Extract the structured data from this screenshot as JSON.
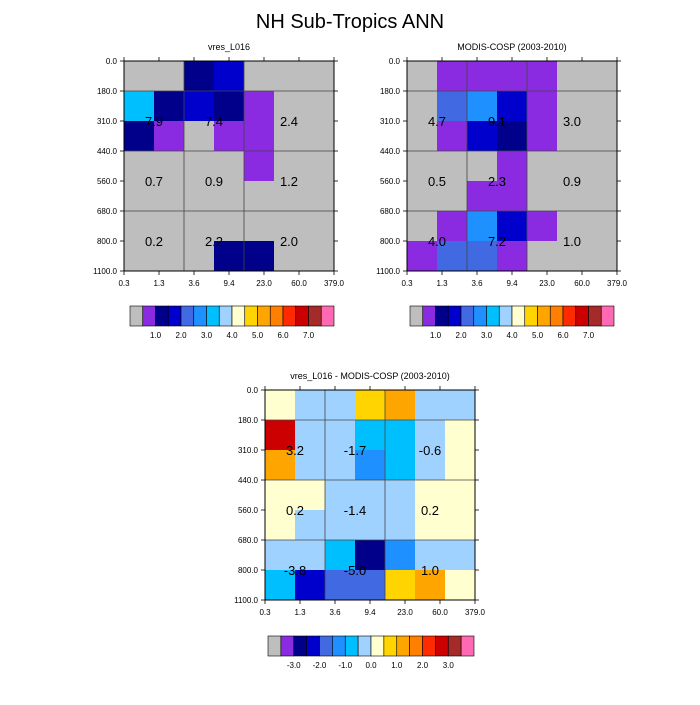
{
  "figure_title": "NH Sub-Tropics ANN",
  "colors": {
    "frame": "#000000",
    "section_line": "#444444",
    "abs_palette": [
      "#bebebe",
      "#8a2be2",
      "#00008b",
      "#0000cd",
      "#4169e1",
      "#1e90ff",
      "#00bfff",
      "#a0d2ff",
      "#ffffd0",
      "#ffd400",
      "#ffa500",
      "#ff7f00",
      "#ff2a00",
      "#cc0000",
      "#a52a2a",
      "#ff69b4"
    ],
    "diff_palette": [
      "#bebebe",
      "#8a2be2",
      "#00008b",
      "#0000cd",
      "#4169e1",
      "#1e90ff",
      "#00bfff",
      "#a0d2ff",
      "#ffffd0",
      "#ffd400",
      "#ffa500",
      "#ff7f00",
      "#ff2a00",
      "#cc0000",
      "#a52a2a",
      "#ff69b4"
    ]
  },
  "chart_data": [
    {
      "type": "heatmap",
      "title": "vres_L016",
      "x_tick_labels": [
        "0.3",
        "1.3",
        "3.6",
        "9.4",
        "23.0",
        "60.0",
        "379.0"
      ],
      "y_tick_labels": [
        "0.0",
        "180.0",
        "310.0",
        "440.0",
        "560.0",
        "680.0",
        "800.0",
        "1100.0"
      ],
      "xlabel": "",
      "ylabel": "",
      "cell_color_index": [
        [
          0,
          0,
          2,
          3,
          0,
          0,
          0
        ],
        [
          6,
          2,
          3,
          2,
          1,
          0,
          0
        ],
        [
          2,
          1,
          0,
          1,
          1,
          0,
          0
        ],
        [
          0,
          0,
          0,
          0,
          1,
          0,
          0
        ],
        [
          0,
          0,
          0,
          0,
          0,
          0,
          0
        ],
        [
          0,
          0,
          0,
          0,
          0,
          0,
          0
        ],
        [
          0,
          0,
          0,
          2,
          2,
          0,
          0
        ]
      ],
      "section_values": [
        {
          "label": "7.9",
          "col_range": [
            0,
            2
          ],
          "row_range": [
            1,
            3
          ]
        },
        {
          "label": "7.4",
          "col_range": [
            2,
            4
          ],
          "row_range": [
            1,
            3
          ]
        },
        {
          "label": "2.4",
          "col_range": [
            4,
            7
          ],
          "row_range": [
            1,
            3
          ]
        },
        {
          "label": "0.7",
          "col_range": [
            0,
            2
          ],
          "row_range": [
            3,
            5
          ]
        },
        {
          "label": "0.9",
          "col_range": [
            2,
            4
          ],
          "row_range": [
            3,
            5
          ]
        },
        {
          "label": "1.2",
          "col_range": [
            4,
            7
          ],
          "row_range": [
            3,
            5
          ]
        },
        {
          "label": "0.2",
          "col_range": [
            0,
            2
          ],
          "row_range": [
            5,
            7
          ]
        },
        {
          "label": "2.2",
          "col_range": [
            2,
            4
          ],
          "row_range": [
            5,
            7
          ]
        },
        {
          "label": "2.0",
          "col_range": [
            4,
            7
          ],
          "row_range": [
            5,
            7
          ]
        }
      ],
      "colorbar_labels": [
        "1.0",
        "2.0",
        "3.0",
        "4.0",
        "5.0",
        "6.0",
        "7.0"
      ]
    },
    {
      "type": "heatmap",
      "title": "MODIS-COSP (2003-2010)",
      "x_tick_labels": [
        "0.3",
        "1.3",
        "3.6",
        "9.4",
        "23.0",
        "60.0",
        "379.0"
      ],
      "y_tick_labels": [
        "0.0",
        "180.0",
        "310.0",
        "440.0",
        "560.0",
        "680.0",
        "800.0",
        "1100.0"
      ],
      "xlabel": "",
      "ylabel": "",
      "cell_color_index": [
        [
          0,
          1,
          1,
          1,
          1,
          0,
          0
        ],
        [
          0,
          4,
          5,
          3,
          1,
          0,
          0
        ],
        [
          0,
          1,
          3,
          2,
          1,
          0,
          0
        ],
        [
          0,
          0,
          0,
          1,
          0,
          0,
          0
        ],
        [
          0,
          0,
          1,
          1,
          0,
          0,
          0
        ],
        [
          0,
          1,
          5,
          3,
          1,
          0,
          0
        ],
        [
          1,
          4,
          4,
          1,
          0,
          0,
          0
        ]
      ],
      "section_values": [
        {
          "label": "4.7",
          "col_range": [
            0,
            2
          ],
          "row_range": [
            1,
            3
          ]
        },
        {
          "label": "9.1",
          "col_range": [
            2,
            4
          ],
          "row_range": [
            1,
            3
          ]
        },
        {
          "label": "3.0",
          "col_range": [
            4,
            7
          ],
          "row_range": [
            1,
            3
          ]
        },
        {
          "label": "0.5",
          "col_range": [
            0,
            2
          ],
          "row_range": [
            3,
            5
          ]
        },
        {
          "label": "2.3",
          "col_range": [
            2,
            4
          ],
          "row_range": [
            3,
            5
          ]
        },
        {
          "label": "0.9",
          "col_range": [
            4,
            7
          ],
          "row_range": [
            3,
            5
          ]
        },
        {
          "label": "4.0",
          "col_range": [
            0,
            2
          ],
          "row_range": [
            5,
            7
          ]
        },
        {
          "label": "7.2",
          "col_range": [
            2,
            4
          ],
          "row_range": [
            5,
            7
          ]
        },
        {
          "label": "1.0",
          "col_range": [
            4,
            7
          ],
          "row_range": [
            5,
            7
          ]
        }
      ],
      "colorbar_labels": [
        "1.0",
        "2.0",
        "3.0",
        "4.0",
        "5.0",
        "6.0",
        "7.0"
      ]
    },
    {
      "type": "heatmap",
      "title": "vres_L016 - MODIS-COSP (2003-2010)",
      "x_tick_labels": [
        "0.3",
        "1.3",
        "3.6",
        "9.4",
        "23.0",
        "60.0",
        "379.0"
      ],
      "y_tick_labels": [
        "0.0",
        "180.0",
        "310.0",
        "440.0",
        "560.0",
        "680.0",
        "800.0",
        "1100.0"
      ],
      "xlabel": "",
      "ylabel": "",
      "cell_color_index": [
        [
          8,
          7,
          7,
          9,
          10,
          7,
          7
        ],
        [
          13,
          7,
          7,
          6,
          6,
          7,
          8
        ],
        [
          10,
          7,
          7,
          5,
          6,
          7,
          8
        ],
        [
          8,
          8,
          7,
          7,
          7,
          8,
          8
        ],
        [
          8,
          7,
          7,
          7,
          7,
          8,
          8
        ],
        [
          7,
          7,
          6,
          2,
          5,
          7,
          7
        ],
        [
          6,
          3,
          4,
          4,
          9,
          10,
          8
        ]
      ],
      "section_values": [
        {
          "label": "3.2",
          "col_range": [
            0,
            2
          ],
          "row_range": [
            1,
            3
          ]
        },
        {
          "label": "-1.7",
          "col_range": [
            2,
            4
          ],
          "row_range": [
            1,
            3
          ]
        },
        {
          "label": "-0.6",
          "col_range": [
            4,
            7
          ],
          "row_range": [
            1,
            3
          ]
        },
        {
          "label": "0.2",
          "col_range": [
            0,
            2
          ],
          "row_range": [
            3,
            5
          ]
        },
        {
          "label": "-1.4",
          "col_range": [
            2,
            4
          ],
          "row_range": [
            3,
            5
          ]
        },
        {
          "label": "0.2",
          "col_range": [
            4,
            7
          ],
          "row_range": [
            3,
            5
          ]
        },
        {
          "label": "-3.8",
          "col_range": [
            0,
            2
          ],
          "row_range": [
            5,
            7
          ]
        },
        {
          "label": "-5.0",
          "col_range": [
            2,
            4
          ],
          "row_range": [
            5,
            7
          ]
        },
        {
          "label": "1.0",
          "col_range": [
            4,
            7
          ],
          "row_range": [
            5,
            7
          ]
        }
      ],
      "colorbar_labels": [
        "-3.0",
        "-2.0",
        "-1.0",
        "0.0",
        "1.0",
        "2.0",
        "3.0"
      ]
    }
  ]
}
